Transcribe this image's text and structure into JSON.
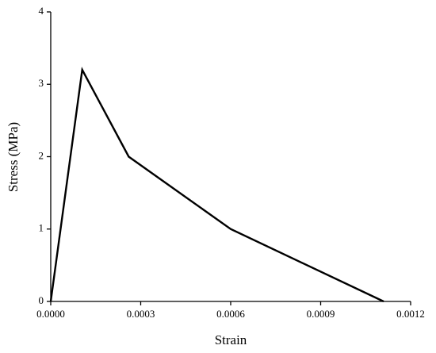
{
  "chart_data": {
    "type": "line",
    "x_label": "Strain",
    "y_label": "Stress (MPa)",
    "x": [
      0,
      0.000105,
      0.00026,
      0.0006,
      0.00111
    ],
    "series": [
      {
        "color": "#000000",
        "values": [
          0,
          3.2,
          2.0,
          1.0,
          0
        ]
      }
    ],
    "xlim": [
      0,
      0.0012
    ],
    "xticks": [
      {
        "value": 0,
        "label": "0.0000"
      },
      {
        "value": 0.0003,
        "label": "0.0003"
      },
      {
        "value": 0.0006,
        "label": "0.0006"
      },
      {
        "value": 0.0009,
        "label": "0.0009"
      },
      {
        "value": 0.0012,
        "label": "0.0012"
      }
    ],
    "ylim": [
      0,
      4
    ],
    "yticks": [
      0,
      1,
      2,
      3,
      4
    ],
    "grid": false
  }
}
